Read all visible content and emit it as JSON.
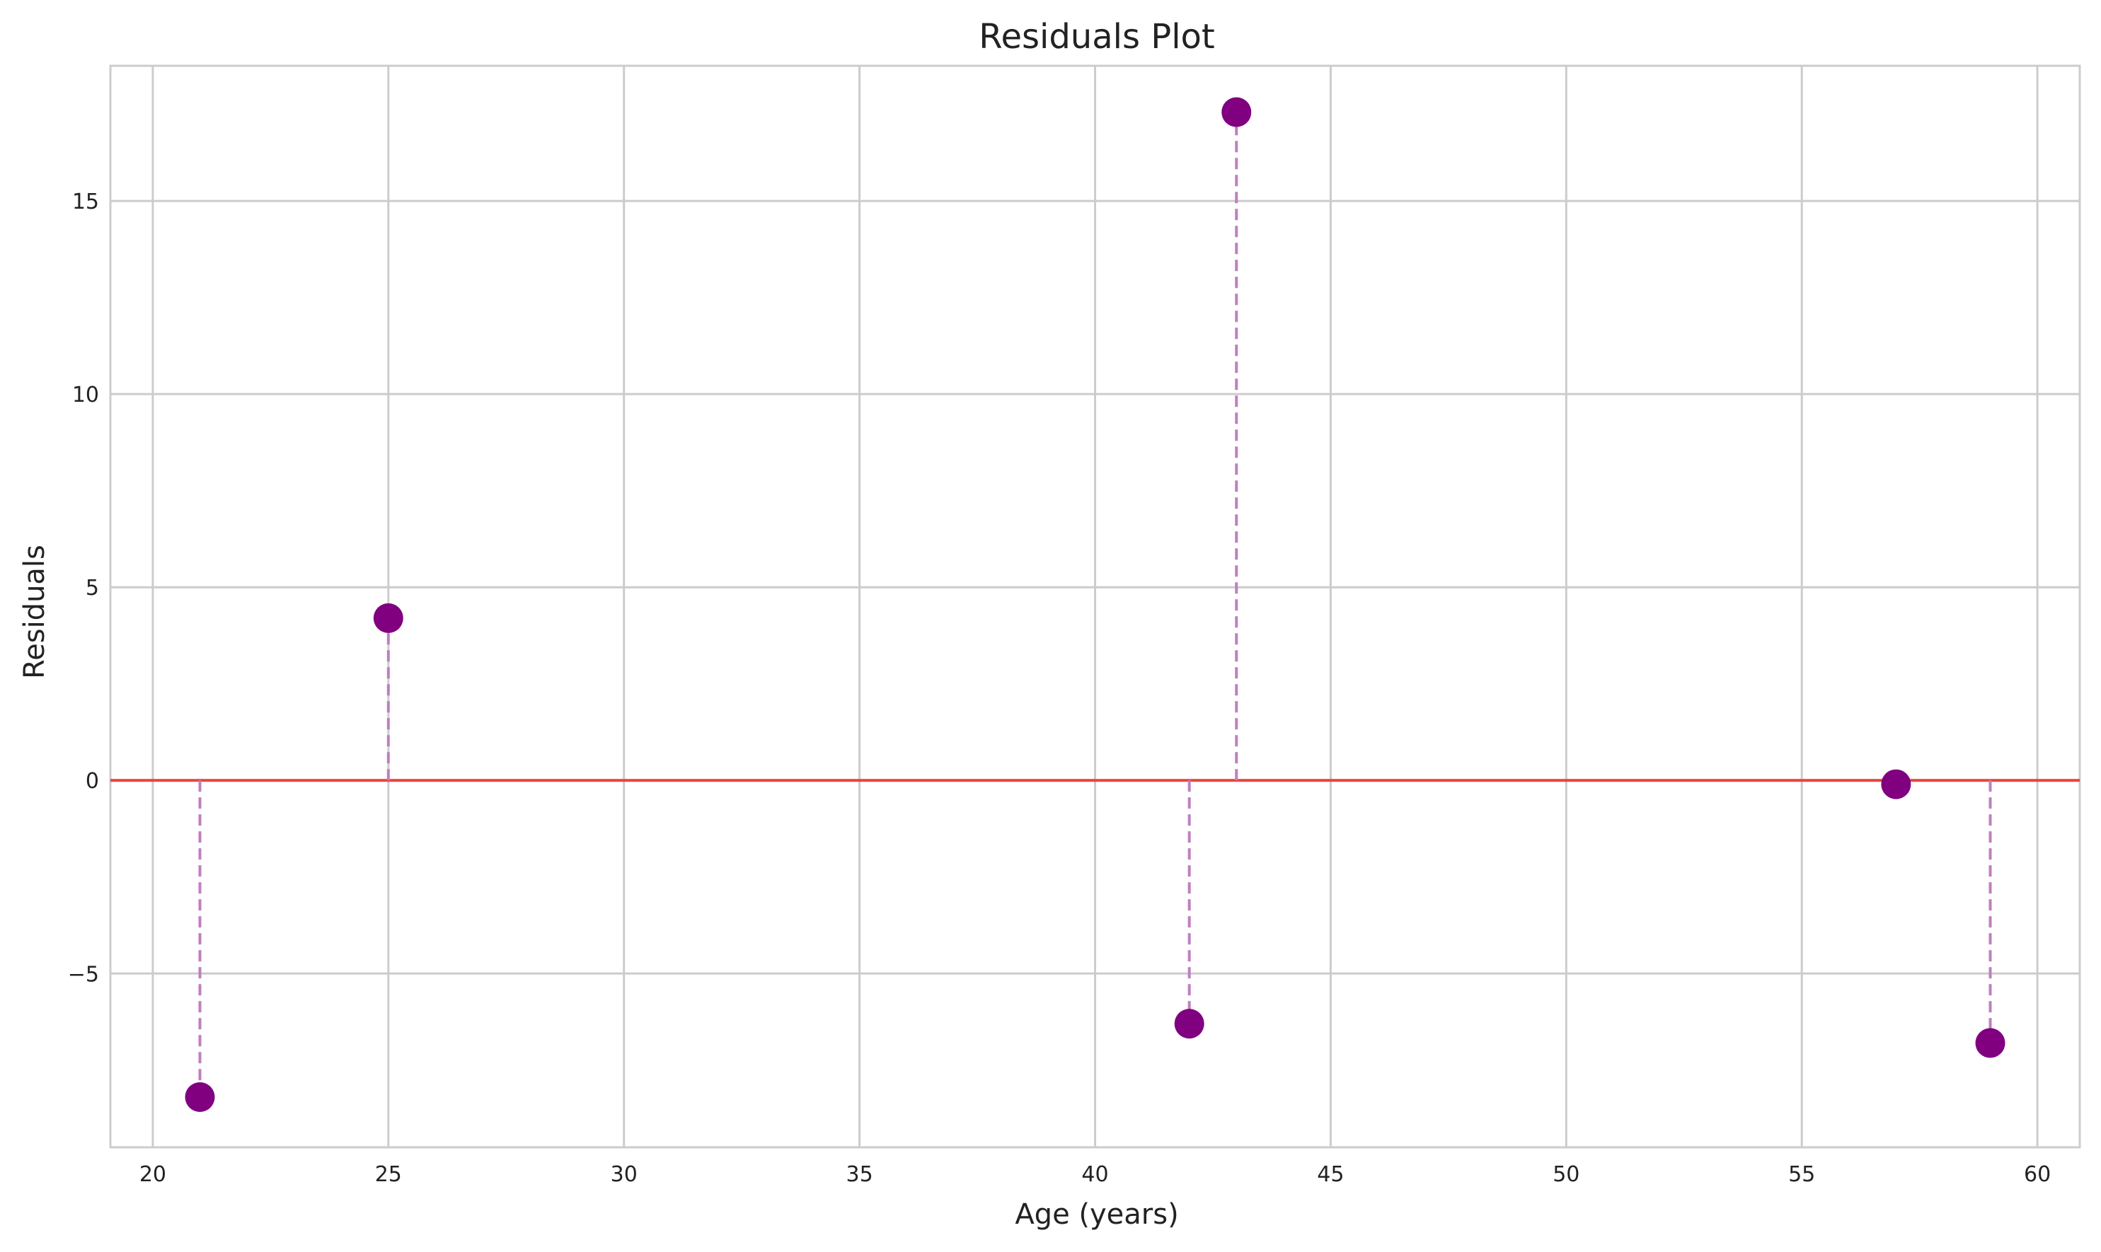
{
  "chart_data": {
    "type": "scatter",
    "title": "Residuals Plot",
    "xlabel": "Age (years)",
    "ylabel": "Residuals",
    "xlim": [
      19.1,
      60.9
    ],
    "ylim": [
      -9.5,
      18.5
    ],
    "xticks": [
      20,
      25,
      30,
      35,
      40,
      45,
      50,
      55,
      60
    ],
    "yticks": [
      -5,
      0,
      5,
      10,
      15
    ],
    "ytick_labels": [
      "−5",
      "0",
      "5",
      "10",
      "15"
    ],
    "grid": true,
    "reference_line": {
      "y": 0,
      "color": "#e8423f"
    },
    "series": [
      {
        "color": "#800080",
        "stem_color": "#bf7fbf",
        "x": [
          21,
          25,
          42,
          43,
          57,
          59
        ],
        "y": [
          -8.2,
          4.2,
          -6.3,
          17.3,
          -0.1,
          -6.8
        ]
      }
    ]
  }
}
